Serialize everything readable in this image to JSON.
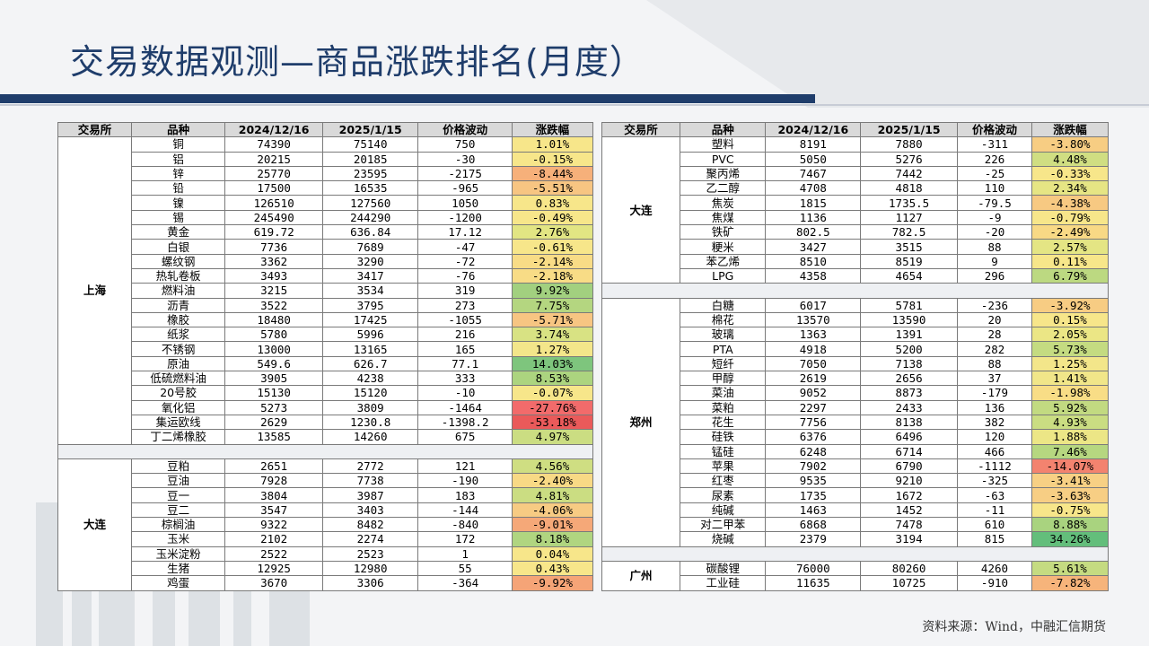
{
  "title": "交易数据观测—商品涨跌排名(月度）",
  "source": "资料来源：Wind，中融汇信期货",
  "headers_left": [
    "交易所",
    "品种",
    "2024/12/16",
    "2025/1/15",
    "价格波动",
    "涨跌幅"
  ],
  "headers_right": [
    "交易所",
    "品种",
    "2024/12/16",
    "2025/1/15",
    "价格波动",
    "涨跌幅"
  ],
  "left_groups": [
    {
      "exchange": "上海",
      "rows": [
        {
          "name": "铜",
          "d1": "74390",
          "d2": "75140",
          "diff": "750",
          "pct": "1.01%",
          "color": "#f7e68a"
        },
        {
          "name": "铝",
          "d1": "20215",
          "d2": "20185",
          "diff": "-30",
          "pct": "-0.15%",
          "color": "#f7e68a"
        },
        {
          "name": "锌",
          "d1": "25770",
          "d2": "23595",
          "diff": "-2175",
          "pct": "-8.44%",
          "color": "#f6b07a"
        },
        {
          "name": "铅",
          "d1": "17500",
          "d2": "16535",
          "diff": "-965",
          "pct": "-5.51%",
          "color": "#f7c582"
        },
        {
          "name": "镍",
          "d1": "126510",
          "d2": "127560",
          "diff": "1050",
          "pct": "0.83%",
          "color": "#f7e68a"
        },
        {
          "name": "锡",
          "d1": "245490",
          "d2": "244290",
          "diff": "-1200",
          "pct": "-0.49%",
          "color": "#f7e68a"
        },
        {
          "name": "黄金",
          "d1": "619.72",
          "d2": "636.84",
          "diff": "17.12",
          "pct": "2.76%",
          "color": "#e2e583"
        },
        {
          "name": "白银",
          "d1": "7736",
          "d2": "7689",
          "diff": "-47",
          "pct": "-0.61%",
          "color": "#f7e68a"
        },
        {
          "name": "螺纹钢",
          "d1": "3362",
          "d2": "3290",
          "diff": "-72",
          "pct": "-2.14%",
          "color": "#f8dc86"
        },
        {
          "name": "热轧卷板",
          "d1": "3493",
          "d2": "3417",
          "diff": "-76",
          "pct": "-2.18%",
          "color": "#f8dc86"
        },
        {
          "name": "燃料油",
          "d1": "3215",
          "d2": "3534",
          "diff": "319",
          "pct": "9.92%",
          "color": "#a2d07f"
        },
        {
          "name": "沥青",
          "d1": "3522",
          "d2": "3795",
          "diff": "273",
          "pct": "7.75%",
          "color": "#b4d680"
        },
        {
          "name": "橡胶",
          "d1": "18480",
          "d2": "17425",
          "diff": "-1055",
          "pct": "-5.71%",
          "color": "#f7c582"
        },
        {
          "name": "纸浆",
          "d1": "5780",
          "d2": "5996",
          "diff": "216",
          "pct": "3.74%",
          "color": "#d8e283"
        },
        {
          "name": "不锈钢",
          "d1": "13000",
          "d2": "13165",
          "diff": "165",
          "pct": "1.27%",
          "color": "#f3e68a"
        },
        {
          "name": "原油",
          "d1": "549.6",
          "d2": "626.7",
          "diff": "77.1",
          "pct": "14.03%",
          "color": "#7ec57d"
        },
        {
          "name": "低硫燃料油",
          "d1": "3905",
          "d2": "4238",
          "diff": "333",
          "pct": "8.53%",
          "color": "#acd47f"
        },
        {
          "name": "20号胶",
          "d1": "15130",
          "d2": "15120",
          "diff": "-10",
          "pct": "-0.07%",
          "color": "#f7e68a"
        },
        {
          "name": "氧化铝",
          "d1": "5273",
          "d2": "3809",
          "diff": "-1464",
          "pct": "-27.76%",
          "color": "#f26b6b"
        },
        {
          "name": "集运欧线",
          "d1": "2629",
          "d2": "1230.8",
          "diff": "-1398.2",
          "pct": "-53.18%",
          "color": "#ea5a5a"
        },
        {
          "name": "丁二烯橡胶",
          "d1": "13585",
          "d2": "14260",
          "diff": "675",
          "pct": "4.97%",
          "color": "#cbdd82"
        }
      ]
    },
    {
      "exchange": "大连",
      "rows": [
        {
          "name": "豆粕",
          "d1": "2651",
          "d2": "2772",
          "diff": "121",
          "pct": "4.56%",
          "color": "#cfde82"
        },
        {
          "name": "豆油",
          "d1": "7928",
          "d2": "7738",
          "diff": "-190",
          "pct": "-2.40%",
          "color": "#f8d985"
        },
        {
          "name": "豆一",
          "d1": "3804",
          "d2": "3987",
          "diff": "183",
          "pct": "4.81%",
          "color": "#cbdd82"
        },
        {
          "name": "豆二",
          "d1": "3547",
          "d2": "3403",
          "diff": "-144",
          "pct": "-4.06%",
          "color": "#f7cb83"
        },
        {
          "name": "棕榈油",
          "d1": "9322",
          "d2": "8482",
          "diff": "-840",
          "pct": "-9.01%",
          "color": "#f5a878"
        },
        {
          "name": "玉米",
          "d1": "2102",
          "d2": "2274",
          "diff": "172",
          "pct": "8.18%",
          "color": "#b0d580"
        },
        {
          "name": "玉米淀粉",
          "d1": "2522",
          "d2": "2523",
          "diff": "1",
          "pct": "0.04%",
          "color": "#f7e68a"
        },
        {
          "name": "生猪",
          "d1": "12925",
          "d2": "12980",
          "diff": "55",
          "pct": "0.43%",
          "color": "#f7e68a"
        },
        {
          "name": "鸡蛋",
          "d1": "3670",
          "d2": "3306",
          "diff": "-364",
          "pct": "-9.92%",
          "color": "#f5a477"
        }
      ]
    }
  ],
  "right_groups": [
    {
      "exchange": "大连",
      "rows": [
        {
          "name": "塑料",
          "d1": "8191",
          "d2": "7880",
          "diff": "-311",
          "pct": "-3.80%",
          "color": "#f7cd83"
        },
        {
          "name": "PVC",
          "d1": "5050",
          "d2": "5276",
          "diff": "226",
          "pct": "4.48%",
          "color": "#d0de82"
        },
        {
          "name": "聚丙烯",
          "d1": "7467",
          "d2": "7442",
          "diff": "-25",
          "pct": "-0.33%",
          "color": "#f7e68a"
        },
        {
          "name": "乙二醇",
          "d1": "4708",
          "d2": "4818",
          "diff": "110",
          "pct": "2.34%",
          "color": "#e6e584"
        },
        {
          "name": "焦炭",
          "d1": "1815",
          "d2": "1735.5",
          "diff": "-79.5",
          "pct": "-4.38%",
          "color": "#f7c982"
        },
        {
          "name": "焦煤",
          "d1": "1136",
          "d2": "1127",
          "diff": "-9",
          "pct": "-0.79%",
          "color": "#f7e68a"
        },
        {
          "name": "铁矿",
          "d1": "802.5",
          "d2": "782.5",
          "diff": "-20",
          "pct": "-2.49%",
          "color": "#f8d985"
        },
        {
          "name": "粳米",
          "d1": "3427",
          "d2": "3515",
          "diff": "88",
          "pct": "2.57%",
          "color": "#e4e584"
        },
        {
          "name": "苯乙烯",
          "d1": "8510",
          "d2": "8519",
          "diff": "9",
          "pct": "0.11%",
          "color": "#f7e68a"
        },
        {
          "name": "LPG",
          "d1": "4358",
          "d2": "4654",
          "diff": "296",
          "pct": "6.79%",
          "color": "#bcd981"
        }
      ]
    },
    {
      "exchange": "郑州",
      "rows": [
        {
          "name": "白糖",
          "d1": "6017",
          "d2": "5781",
          "diff": "-236",
          "pct": "-3.92%",
          "color": "#f7cc83"
        },
        {
          "name": "棉花",
          "d1": "13570",
          "d2": "13590",
          "diff": "20",
          "pct": "0.15%",
          "color": "#f7e68a"
        },
        {
          "name": "玻璃",
          "d1": "1363",
          "d2": "1391",
          "diff": "28",
          "pct": "2.05%",
          "color": "#ebe685"
        },
        {
          "name": "PTA",
          "d1": "4918",
          "d2": "5200",
          "diff": "282",
          "pct": "5.73%",
          "color": "#c4db81"
        },
        {
          "name": "短纤",
          "d1": "7050",
          "d2": "7138",
          "diff": "88",
          "pct": "1.25%",
          "color": "#f3e68a"
        },
        {
          "name": "甲醇",
          "d1": "2619",
          "d2": "2656",
          "diff": "37",
          "pct": "1.41%",
          "color": "#f1e689"
        },
        {
          "name": "菜油",
          "d1": "9052",
          "d2": "8873",
          "diff": "-179",
          "pct": "-1.98%",
          "color": "#f8dd86"
        },
        {
          "name": "菜粕",
          "d1": "2297",
          "d2": "2433",
          "diff": "136",
          "pct": "5.92%",
          "color": "#c2da81"
        },
        {
          "name": "花生",
          "d1": "7756",
          "d2": "8138",
          "diff": "382",
          "pct": "4.93%",
          "color": "#cadd82"
        },
        {
          "name": "硅铁",
          "d1": "6376",
          "d2": "6496",
          "diff": "120",
          "pct": "1.88%",
          "color": "#ece686"
        },
        {
          "name": "锰硅",
          "d1": "6248",
          "d2": "6714",
          "diff": "466",
          "pct": "7.46%",
          "color": "#b6d780"
        },
        {
          "name": "苹果",
          "d1": "7902",
          "d2": "6790",
          "diff": "-1112",
          "pct": "-14.07%",
          "color": "#f3836f"
        },
        {
          "name": "红枣",
          "d1": "9535",
          "d2": "9210",
          "diff": "-325",
          "pct": "-3.41%",
          "color": "#f7d084"
        },
        {
          "name": "尿素",
          "d1": "1735",
          "d2": "1672",
          "diff": "-63",
          "pct": "-3.63%",
          "color": "#f7ce84"
        },
        {
          "name": "纯碱",
          "d1": "1463",
          "d2": "1452",
          "diff": "-11",
          "pct": "-0.75%",
          "color": "#f7e68a"
        },
        {
          "name": "对二甲苯",
          "d1": "6868",
          "d2": "7478",
          "diff": "610",
          "pct": "8.88%",
          "color": "#a9d37f"
        },
        {
          "name": "烧碱",
          "d1": "2379",
          "d2": "3194",
          "diff": "815",
          "pct": "34.26%",
          "color": "#63be7b"
        }
      ]
    },
    {
      "exchange": "广州",
      "rows": [
        {
          "name": "碳酸锂",
          "d1": "76000",
          "d2": "80260",
          "diff": "4260",
          "pct": "5.61%",
          "color": "#c5db81"
        },
        {
          "name": "工业硅",
          "d1": "11635",
          "d2": "10725",
          "diff": "-910",
          "pct": "-7.82%",
          "color": "#f6b47b"
        }
      ]
    }
  ]
}
